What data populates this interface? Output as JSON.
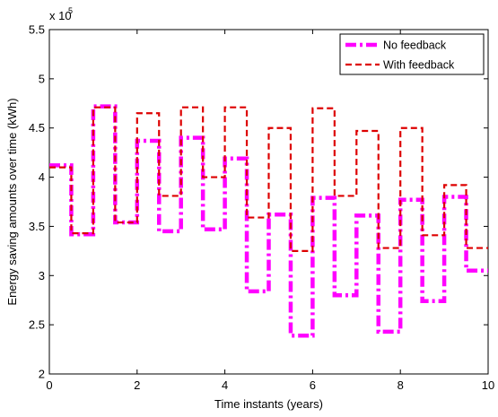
{
  "chart_data": {
    "type": "line",
    "title": "",
    "xlabel": "Time instants (years)",
    "ylabel": "Energy saving amounts over time (kWh)",
    "y_exponent_label": "x 10",
    "y_exponent_power": "5",
    "xlim": [
      0,
      10
    ],
    "ylim": [
      2,
      5.5
    ],
    "x_ticks": [
      0,
      2,
      4,
      6,
      8,
      10
    ],
    "y_ticks": [
      2,
      2.5,
      3,
      3.5,
      4,
      4.5,
      5,
      5.5
    ],
    "x_tick_labels": [
      "0",
      "2",
      "4",
      "6",
      "8",
      "10"
    ],
    "y_tick_labels": [
      "2",
      "2.5",
      "3",
      "3.5",
      "4",
      "4.5",
      "5",
      "5.5"
    ],
    "grid": false,
    "legend_position": "top-right",
    "step_style": "hold",
    "series": [
      {
        "name": "No feedback",
        "color": "#ff00ff",
        "line_style": "dash-dot",
        "x": [
          0,
          0.5,
          1,
          1.5,
          2,
          2.5,
          3,
          3.5,
          4,
          4.5,
          5,
          5.5,
          6,
          6.5,
          7,
          7.5,
          8,
          8.5,
          9,
          9.5
        ],
        "values": [
          4.12,
          3.42,
          4.72,
          3.54,
          4.37,
          3.45,
          4.4,
          3.47,
          4.19,
          2.84,
          3.62,
          2.39,
          3.79,
          2.8,
          3.61,
          2.43,
          3.77,
          2.74,
          3.8,
          3.05
        ]
      },
      {
        "name": "With feedback",
        "color": "#dd0000",
        "line_style": "dashed",
        "x": [
          0,
          0.5,
          1,
          1.5,
          2,
          2.5,
          3,
          3.5,
          4,
          4.5,
          5,
          5.5,
          6,
          6.5,
          7,
          7.5,
          8,
          8.5,
          9,
          9.5
        ],
        "values": [
          4.1,
          3.43,
          4.71,
          3.54,
          4.65,
          3.81,
          4.71,
          4.0,
          4.71,
          3.59,
          4.5,
          3.25,
          4.7,
          3.81,
          4.47,
          3.28,
          4.5,
          3.41,
          3.92,
          3.28
        ]
      }
    ]
  }
}
